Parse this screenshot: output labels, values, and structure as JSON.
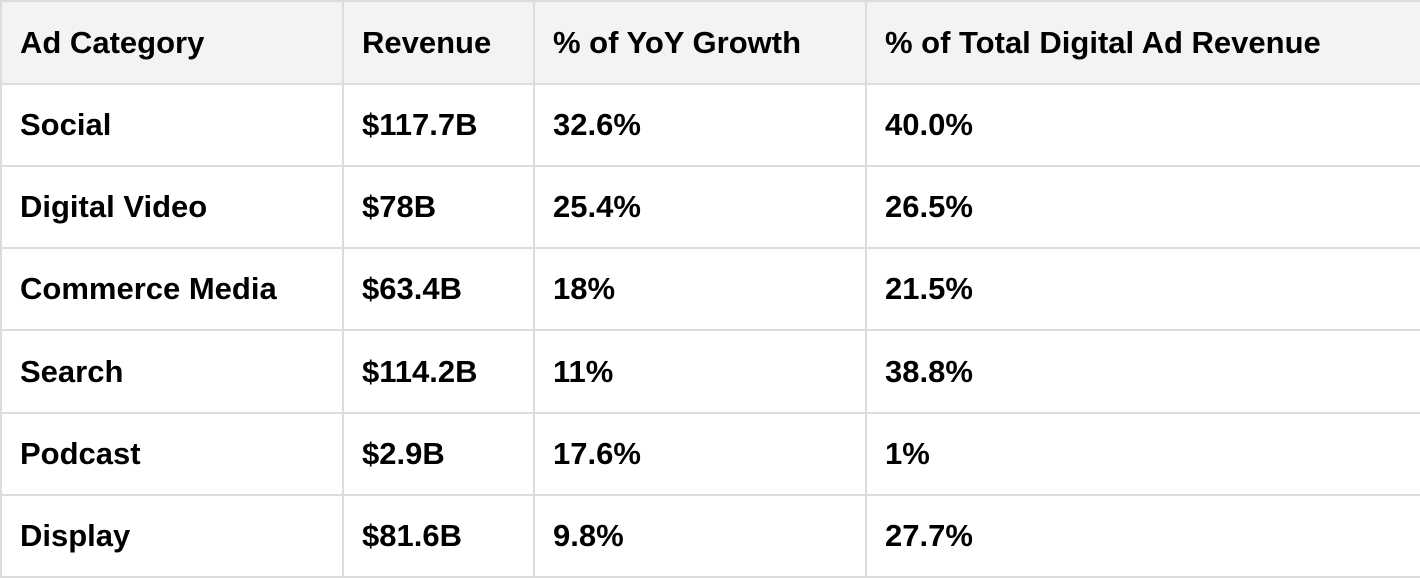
{
  "chart_data": {
    "type": "table",
    "columns": [
      "Ad Category",
      "Revenue",
      "% of YoY Growth",
      "% of Total Digital Ad Revenue"
    ],
    "rows": [
      [
        "Social",
        "$117.7B",
        "32.6%",
        "40.0%"
      ],
      [
        "Digital Video",
        "$78B",
        "25.4%",
        "26.5%"
      ],
      [
        "Commerce Media",
        "$63.4B",
        "18%",
        "21.5%"
      ],
      [
        "Search",
        "$114.2B",
        "11%",
        "38.8%"
      ],
      [
        "Podcast",
        "$2.9B",
        "17.6%",
        "1%"
      ],
      [
        "Display",
        "$81.6B",
        "9.8%",
        "27.7%"
      ]
    ]
  },
  "colors": {
    "header_background": "#f3f3f3",
    "border": "#dcdcdc",
    "text": "#000000"
  }
}
